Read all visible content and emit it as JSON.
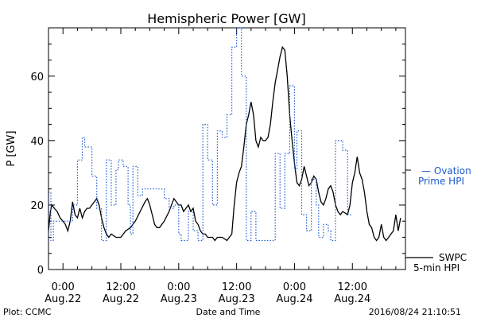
{
  "chart_data": {
    "type": "line",
    "title": "Hemispheric Power [GW]",
    "ylabel": "P [GW]",
    "xlabel": "Date and Time",
    "xlim": [
      -3,
      71
    ],
    "ylim": [
      0,
      75
    ],
    "yticks": [
      0,
      20,
      40,
      60
    ],
    "xticks": [
      {
        "x": 0,
        "time": "0:00",
        "date": "Aug.22"
      },
      {
        "x": 12,
        "time": "12:00",
        "date": "Aug.22"
      },
      {
        "x": 24,
        "time": "0:00",
        "date": "Aug.23"
      },
      {
        "x": 36,
        "time": "12:00",
        "date": "Aug.23"
      },
      {
        "x": 48,
        "time": "0:00",
        "date": "Aug.24"
      },
      {
        "x": 60,
        "time": "12:00",
        "date": "Aug.24"
      }
    ],
    "series": [
      {
        "name": "SWPC 5-min HPI",
        "color": "#000000",
        "style": "solid",
        "points": [
          [
            -3,
            12
          ],
          [
            -2.6,
            18
          ],
          [
            -2.3,
            20
          ],
          [
            -1.8,
            19
          ],
          [
            -1.2,
            18
          ],
          [
            -0.6,
            16
          ],
          [
            0,
            15
          ],
          [
            0.5,
            14
          ],
          [
            1,
            12
          ],
          [
            1.5,
            15
          ],
          [
            2,
            21
          ],
          [
            2.5,
            17
          ],
          [
            3,
            16
          ],
          [
            3.5,
            19
          ],
          [
            4,
            16
          ],
          [
            4.5,
            18
          ],
          [
            5,
            19
          ],
          [
            5.5,
            19
          ],
          [
            6,
            20
          ],
          [
            6.5,
            21
          ],
          [
            7,
            22
          ],
          [
            7.5,
            20
          ],
          [
            8,
            16
          ],
          [
            8.5,
            13
          ],
          [
            9,
            11
          ],
          [
            9.5,
            10
          ],
          [
            10,
            11
          ],
          [
            11,
            10
          ],
          [
            12,
            10
          ],
          [
            13,
            12
          ],
          [
            14,
            13
          ],
          [
            15,
            15
          ],
          [
            16,
            18
          ],
          [
            17,
            21
          ],
          [
            17.5,
            22
          ],
          [
            18,
            20
          ],
          [
            18.5,
            17
          ],
          [
            19,
            14
          ],
          [
            19.5,
            13
          ],
          [
            20,
            13
          ],
          [
            21,
            15
          ],
          [
            22,
            18
          ],
          [
            22.5,
            20
          ],
          [
            23,
            22
          ],
          [
            23.5,
            21
          ],
          [
            24,
            20
          ],
          [
            24.5,
            20
          ],
          [
            25,
            18
          ],
          [
            25.5,
            19
          ],
          [
            26,
            20
          ],
          [
            26.5,
            18
          ],
          [
            27,
            19
          ],
          [
            27.5,
            15
          ],
          [
            28,
            14
          ],
          [
            28.5,
            12
          ],
          [
            29,
            11
          ],
          [
            29.5,
            11
          ],
          [
            30,
            10
          ],
          [
            30.5,
            10
          ],
          [
            31,
            10
          ],
          [
            31.5,
            9
          ],
          [
            32,
            10
          ],
          [
            33,
            10
          ],
          [
            34,
            9
          ],
          [
            35,
            11
          ],
          [
            35.5,
            20
          ],
          [
            36,
            27
          ],
          [
            36.5,
            30
          ],
          [
            37,
            32
          ],
          [
            37.5,
            38
          ],
          [
            38,
            45
          ],
          [
            38.5,
            48
          ],
          [
            39,
            52
          ],
          [
            39.5,
            48
          ],
          [
            40,
            40
          ],
          [
            40.5,
            38
          ],
          [
            41,
            41
          ],
          [
            41.5,
            40
          ],
          [
            42,
            40
          ],
          [
            42.5,
            41
          ],
          [
            43,
            45
          ],
          [
            43.5,
            52
          ],
          [
            44,
            58
          ],
          [
            44.5,
            62
          ],
          [
            45,
            66
          ],
          [
            45.5,
            69
          ],
          [
            46,
            68
          ],
          [
            46.5,
            60
          ],
          [
            47,
            48
          ],
          [
            47.5,
            40
          ],
          [
            48,
            33
          ],
          [
            48.5,
            27
          ],
          [
            49,
            26
          ],
          [
            49.5,
            28
          ],
          [
            50,
            32
          ],
          [
            50.5,
            29
          ],
          [
            51,
            26
          ],
          [
            51.5,
            27
          ],
          [
            52,
            29
          ],
          [
            52.5,
            28
          ],
          [
            53,
            24
          ],
          [
            53.5,
            21
          ],
          [
            54,
            20
          ],
          [
            54.5,
            22
          ],
          [
            55,
            25
          ],
          [
            55.5,
            26
          ],
          [
            56,
            24
          ],
          [
            56.5,
            20
          ],
          [
            57,
            18
          ],
          [
            57.5,
            17
          ],
          [
            58,
            18
          ],
          [
            59,
            17
          ],
          [
            59.5,
            20
          ],
          [
            60,
            27
          ],
          [
            60.5,
            30
          ],
          [
            61,
            35
          ],
          [
            61.5,
            30
          ],
          [
            62,
            28
          ],
          [
            62.5,
            24
          ],
          [
            63,
            18
          ],
          [
            63.5,
            14
          ],
          [
            64,
            13
          ],
          [
            64.5,
            10
          ],
          [
            65,
            9
          ],
          [
            65.5,
            10
          ],
          [
            66,
            14
          ],
          [
            66.5,
            10
          ],
          [
            67,
            9
          ],
          [
            67.5,
            10
          ],
          [
            68,
            11
          ],
          [
            68.5,
            12
          ],
          [
            69,
            17
          ],
          [
            69.5,
            12
          ],
          [
            70,
            16
          ]
        ]
      },
      {
        "name": "Ovation Prime HPI",
        "color": "#1e5ad0",
        "style": "dotted",
        "points": [
          [
            -3,
            24
          ],
          [
            -2.5,
            24
          ],
          [
            -2.5,
            9
          ],
          [
            -2,
            9
          ],
          [
            -2,
            15
          ],
          [
            2,
            15
          ],
          [
            2,
            20
          ],
          [
            3,
            20
          ],
          [
            3,
            34
          ],
          [
            4,
            34
          ],
          [
            4,
            41
          ],
          [
            4.5,
            41
          ],
          [
            4.5,
            38
          ],
          [
            6,
            38
          ],
          [
            6,
            29
          ],
          [
            7,
            29
          ],
          [
            7,
            19
          ],
          [
            8,
            19
          ],
          [
            8,
            9
          ],
          [
            9,
            9
          ],
          [
            9,
            34
          ],
          [
            10,
            34
          ],
          [
            10,
            20
          ],
          [
            11,
            20
          ],
          [
            11,
            31
          ],
          [
            11.5,
            31
          ],
          [
            11.5,
            34
          ],
          [
            12.5,
            34
          ],
          [
            12.5,
            32
          ],
          [
            13.5,
            32
          ],
          [
            13.5,
            20
          ],
          [
            14,
            20
          ],
          [
            14,
            11
          ],
          [
            14.5,
            11
          ],
          [
            14.5,
            32
          ],
          [
            15.5,
            32
          ],
          [
            15.5,
            23
          ],
          [
            16.5,
            23
          ],
          [
            16.5,
            25
          ],
          [
            21,
            25
          ],
          [
            21,
            22
          ],
          [
            22,
            22
          ],
          [
            22,
            19
          ],
          [
            23,
            19
          ],
          [
            23,
            20
          ],
          [
            24,
            20
          ],
          [
            24,
            11
          ],
          [
            24.5,
            11
          ],
          [
            24.5,
            9
          ],
          [
            26,
            9
          ],
          [
            26,
            18
          ],
          [
            27,
            18
          ],
          [
            27,
            12
          ],
          [
            28,
            12
          ],
          [
            28,
            9
          ],
          [
            29,
            9
          ],
          [
            29,
            45
          ],
          [
            30,
            45
          ],
          [
            30,
            34
          ],
          [
            31,
            34
          ],
          [
            31,
            20
          ],
          [
            32,
            20
          ],
          [
            32,
            43
          ],
          [
            33,
            43
          ],
          [
            33,
            41
          ],
          [
            34,
            41
          ],
          [
            34,
            48
          ],
          [
            35,
            48
          ],
          [
            35,
            69
          ],
          [
            36,
            69
          ],
          [
            36,
            75
          ],
          [
            37,
            75
          ],
          [
            37,
            60
          ],
          [
            38,
            60
          ],
          [
            38,
            9
          ],
          [
            39,
            9
          ],
          [
            39,
            18
          ],
          [
            40,
            18
          ],
          [
            40,
            9
          ],
          [
            44,
            9
          ],
          [
            44,
            36
          ],
          [
            45,
            36
          ],
          [
            45,
            19
          ],
          [
            46,
            19
          ],
          [
            46,
            36
          ],
          [
            47,
            36
          ],
          [
            47,
            57
          ],
          [
            48,
            57
          ],
          [
            48,
            31
          ],
          [
            48.5,
            31
          ],
          [
            48.5,
            43
          ],
          [
            49.5,
            43
          ],
          [
            49.5,
            17
          ],
          [
            50.5,
            17
          ],
          [
            50.5,
            12
          ],
          [
            51.5,
            12
          ],
          [
            51.5,
            28
          ],
          [
            52.5,
            28
          ],
          [
            52.5,
            20
          ],
          [
            53,
            20
          ],
          [
            53,
            10
          ],
          [
            54,
            10
          ],
          [
            54,
            14
          ],
          [
            55,
            14
          ],
          [
            55,
            12
          ],
          [
            55.5,
            12
          ],
          [
            55.5,
            9
          ],
          [
            56.5,
            9
          ],
          [
            56.5,
            40
          ],
          [
            58,
            40
          ],
          [
            58,
            37
          ],
          [
            59,
            37
          ],
          [
            59,
            17
          ],
          [
            60,
            17
          ]
        ]
      }
    ]
  },
  "legend": {
    "ovation_line1": "— Ovation",
    "ovation_line2": "Prime HPI",
    "swpc_line1": "SWPC",
    "swpc_line2": "5-min HPI"
  },
  "footer": {
    "plot_credit": "Plot: CCMC",
    "axis_caption": "Date and Time",
    "timestamp": "2016/08/24 21:10:51"
  }
}
